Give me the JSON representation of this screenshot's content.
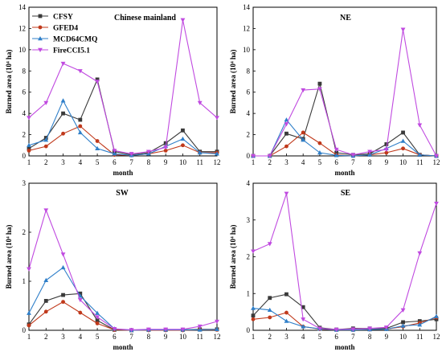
{
  "colors": {
    "CFSY": "#3a3a3a",
    "GFED4": "#c0391b",
    "MCD64CMQ": "#2f7fc9",
    "FireCCI5.1": "#c04ae0"
  },
  "legend": {
    "entries": [
      {
        "name": "CFSY",
        "marker": "square"
      },
      {
        "name": "GFED4",
        "marker": "circle"
      },
      {
        "name": "MCD64CMQ",
        "marker": "triangle-up"
      },
      {
        "name": "FireCCI5.1",
        "marker": "triangle-down"
      }
    ],
    "placement": "top-left of first panel"
  },
  "chart_data": [
    {
      "type": "line",
      "title": "Chinese mainland",
      "xlabel": "month",
      "ylabel": "Burned area (10⁴ ha)",
      "x": [
        1,
        2,
        3,
        4,
        5,
        6,
        7,
        8,
        9,
        10,
        11,
        12
      ],
      "xticks": [
        "1",
        "2",
        "3",
        "4",
        "5",
        "6",
        "7",
        "8",
        "9",
        "10",
        "11",
        "12"
      ],
      "ylim": [
        0,
        14
      ],
      "yticks": [
        "0",
        "2",
        "4",
        "6",
        "8",
        "10",
        "12",
        "14"
      ],
      "series": [
        {
          "name": "CFSY",
          "values": [
            0.7,
            1.7,
            4.0,
            3.4,
            7.2,
            0.4,
            0.1,
            0.3,
            1.2,
            2.4,
            0.4,
            0.4
          ]
        },
        {
          "name": "GFED4",
          "values": [
            0.5,
            0.9,
            2.1,
            2.8,
            1.4,
            0.1,
            0.05,
            0.2,
            0.5,
            1.0,
            0.3,
            0.3
          ]
        },
        {
          "name": "MCD64CMQ",
          "values": [
            1.0,
            1.5,
            5.2,
            2.2,
            0.7,
            0.2,
            0.05,
            0.2,
            0.9,
            1.6,
            0.3,
            0.2
          ]
        },
        {
          "name": "FireCCI5.1",
          "values": [
            3.6,
            5.0,
            8.7,
            8.0,
            7.0,
            0.5,
            0.2,
            0.4,
            0.8,
            12.8,
            5.0,
            3.6
          ]
        }
      ]
    },
    {
      "type": "line",
      "title": "NE",
      "xlabel": "month",
      "ylabel": "Burned area (10⁴ ha)",
      "x": [
        1,
        2,
        3,
        4,
        5,
        6,
        7,
        8,
        9,
        10,
        11,
        12
      ],
      "xticks": [
        "1",
        "2",
        "3",
        "4",
        "5",
        "6",
        "7",
        "8",
        "9",
        "10",
        "11",
        "12"
      ],
      "ylim": [
        0,
        14
      ],
      "yticks": [
        "0",
        "2",
        "4",
        "6",
        "8",
        "10",
        "12",
        "14"
      ],
      "series": [
        {
          "name": "CFSY",
          "values": [
            0.0,
            0.0,
            2.1,
            1.6,
            6.8,
            0.3,
            0.1,
            0.2,
            1.1,
            2.2,
            0.1,
            0.0
          ]
        },
        {
          "name": "GFED4",
          "values": [
            0.0,
            0.0,
            0.9,
            2.2,
            1.2,
            0.1,
            0.0,
            0.1,
            0.3,
            0.7,
            0.1,
            0.0
          ]
        },
        {
          "name": "MCD64CMQ",
          "values": [
            0.0,
            0.0,
            3.4,
            1.5,
            0.3,
            0.05,
            0.0,
            0.1,
            0.7,
            1.4,
            0.1,
            0.0
          ]
        },
        {
          "name": "FireCCI5.1",
          "values": [
            0.0,
            0.0,
            3.0,
            6.2,
            6.3,
            0.6,
            0.1,
            0.4,
            0.6,
            11.9,
            2.9,
            0.0
          ]
        }
      ]
    },
    {
      "type": "line",
      "title": "SW",
      "xlabel": "month",
      "ylabel": "Burned area (10⁴ ha)",
      "x": [
        1,
        2,
        3,
        4,
        5,
        6,
        7,
        8,
        9,
        10,
        11,
        12
      ],
      "xticks": [
        "1",
        "2",
        "3",
        "4",
        "5",
        "6",
        "7",
        "8",
        "9",
        "10",
        "11",
        "12"
      ],
      "ylim": [
        0,
        3
      ],
      "yticks": [
        "0",
        "1",
        "2",
        "3"
      ],
      "series": [
        {
          "name": "CFSY",
          "values": [
            0.12,
            0.6,
            0.72,
            0.75,
            0.2,
            0.01,
            0.0,
            0.01,
            0.01,
            0.01,
            0.02,
            0.02
          ]
        },
        {
          "name": "GFED4",
          "values": [
            0.1,
            0.38,
            0.58,
            0.36,
            0.14,
            0.01,
            0.0,
            0.0,
            0.0,
            0.0,
            0.01,
            0.01
          ]
        },
        {
          "name": "MCD64CMQ",
          "values": [
            0.35,
            1.02,
            1.28,
            0.7,
            0.35,
            0.03,
            0.0,
            0.01,
            0.01,
            0.01,
            0.01,
            0.02
          ]
        },
        {
          "name": "FireCCI5.1",
          "values": [
            1.25,
            2.45,
            1.55,
            0.62,
            0.27,
            0.03,
            0.01,
            0.02,
            0.02,
            0.02,
            0.08,
            0.18
          ]
        }
      ]
    },
    {
      "type": "line",
      "title": "SE",
      "xlabel": "month",
      "ylabel": "Burned area (10⁴ ha)",
      "x": [
        1,
        2,
        3,
        4,
        5,
        6,
        7,
        8,
        9,
        10,
        11,
        12
      ],
      "xticks": [
        "1",
        "2",
        "3",
        "4",
        "5",
        "6",
        "7",
        "8",
        "9",
        "10",
        "11",
        "12"
      ],
      "ylim": [
        0,
        4
      ],
      "yticks": [
        "0",
        "1",
        "2",
        "3",
        "4"
      ],
      "series": [
        {
          "name": "CFSY",
          "values": [
            0.4,
            0.88,
            0.98,
            0.63,
            0.07,
            0.02,
            0.05,
            0.05,
            0.05,
            0.22,
            0.25,
            0.3
          ]
        },
        {
          "name": "GFED4",
          "values": [
            0.3,
            0.35,
            0.48,
            0.1,
            0.03,
            0.01,
            0.01,
            0.02,
            0.03,
            0.1,
            0.2,
            0.35
          ]
        },
        {
          "name": "MCD64CMQ",
          "values": [
            0.6,
            0.55,
            0.25,
            0.1,
            0.04,
            0.01,
            0.01,
            0.02,
            0.03,
            0.12,
            0.15,
            0.38
          ]
        },
        {
          "name": "FireCCI5.1",
          "values": [
            2.15,
            2.35,
            3.72,
            0.3,
            0.05,
            0.02,
            0.03,
            0.05,
            0.08,
            0.55,
            2.1,
            3.45
          ]
        }
      ]
    }
  ]
}
